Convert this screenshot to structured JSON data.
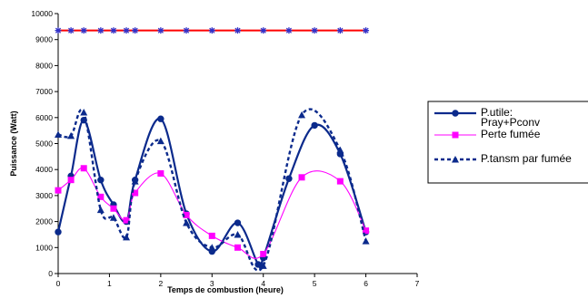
{
  "chart_data": {
    "type": "line",
    "title": "",
    "xlabel": "Temps de combustion (heure)",
    "ylabel": "Puissance (Watt)",
    "xlim": [
      0,
      7
    ],
    "ylim": [
      0,
      10000
    ],
    "x_ticks": [
      "0",
      "1",
      "2",
      "3",
      "4",
      "5",
      "6",
      "7"
    ],
    "y_ticks": [
      "0",
      "1000",
      "2000",
      "3000",
      "4000",
      "5000",
      "6000",
      "7000",
      "8000",
      "9000",
      "10000"
    ],
    "grid": false,
    "legend_position": "right",
    "series": [
      {
        "name": "",
        "color": "#ff0000",
        "marker": "asterisk",
        "marker_color": "#3030c8",
        "line": "solid",
        "points": [
          [
            0,
            9350
          ],
          [
            0.25,
            9350
          ],
          [
            0.5,
            9350
          ],
          [
            0.83,
            9350
          ],
          [
            1.08,
            9350
          ],
          [
            1.33,
            9350
          ],
          [
            1.5,
            9350
          ],
          [
            2,
            9350
          ],
          [
            2.5,
            9350
          ],
          [
            3,
            9350
          ],
          [
            3.5,
            9350
          ],
          [
            4,
            9350
          ],
          [
            4.5,
            9350
          ],
          [
            5,
            9350
          ],
          [
            5.5,
            9350
          ],
          [
            6,
            9350
          ]
        ]
      },
      {
        "name": "P.utile: Pray+Pconv",
        "legend_lines": [
          "P.utile:",
          "Pray+Pconv"
        ],
        "color": "#0b2a8c",
        "marker": "circle",
        "line": "solid",
        "points": [
          [
            0,
            1600
          ],
          [
            0.25,
            3750
          ],
          [
            0.5,
            5900
          ],
          [
            0.83,
            3600
          ],
          [
            1.08,
            2650
          ],
          [
            1.33,
            2000
          ],
          [
            1.5,
            3600
          ],
          [
            2,
            5950
          ],
          [
            2.5,
            2300
          ],
          [
            3,
            850
          ],
          [
            3.5,
            1950
          ],
          [
            3.9,
            350
          ],
          [
            4,
            600
          ],
          [
            4.5,
            3650
          ],
          [
            5,
            5700
          ],
          [
            5.5,
            4600
          ],
          [
            6,
            1600
          ]
        ]
      },
      {
        "name": "Perte fumée",
        "color": "#ff00ff",
        "marker": "square",
        "line": "solid",
        "points": [
          [
            0,
            3200
          ],
          [
            0.25,
            3600
          ],
          [
            0.5,
            4050
          ],
          [
            0.83,
            2950
          ],
          [
            1.08,
            2500
          ],
          [
            1.33,
            2050
          ],
          [
            1.5,
            3100
          ],
          [
            2,
            3850
          ],
          [
            2.5,
            2250
          ],
          [
            3,
            1450
          ],
          [
            3.5,
            1000
          ],
          [
            4,
            750
          ],
          [
            4.75,
            3700
          ],
          [
            5.5,
            3550
          ],
          [
            6,
            1650
          ]
        ]
      },
      {
        "name": "P.tansm par fumée",
        "color": "#0b2a8c",
        "marker": "triangle",
        "line": "dashed",
        "points": [
          [
            0,
            5350
          ],
          [
            0.25,
            5300
          ],
          [
            0.5,
            6200
          ],
          [
            0.83,
            2450
          ],
          [
            1.08,
            2150
          ],
          [
            1.33,
            1400
          ],
          [
            1.5,
            3550
          ],
          [
            2,
            5100
          ],
          [
            2.5,
            1950
          ],
          [
            3,
            1000
          ],
          [
            3.5,
            1500
          ],
          [
            4,
            300
          ],
          [
            4.75,
            6100
          ],
          [
            5.5,
            4750
          ],
          [
            6,
            1250
          ]
        ]
      }
    ]
  }
}
